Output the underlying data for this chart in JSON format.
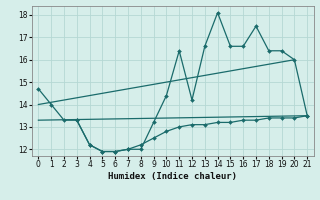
{
  "xlabel": "Humidex (Indice chaleur)",
  "xlim": [
    -0.5,
    21.5
  ],
  "ylim": [
    11.7,
    18.4
  ],
  "yticks": [
    12,
    13,
    14,
    15,
    16,
    17,
    18
  ],
  "xticks": [
    0,
    1,
    2,
    3,
    4,
    5,
    6,
    7,
    8,
    9,
    10,
    11,
    12,
    13,
    14,
    15,
    16,
    17,
    18,
    19,
    20,
    21
  ],
  "bg_color": "#d6eeea",
  "grid_color": "#b5d8d4",
  "line_color": "#1a6b6b",
  "upper_zigzag_x": [
    0,
    1,
    2,
    3,
    4,
    5,
    6,
    7,
    8,
    9,
    10,
    11,
    12,
    13,
    14,
    15,
    16,
    17,
    18,
    19,
    20,
    21
  ],
  "upper_zigzag_y": [
    14.7,
    14.0,
    13.3,
    13.3,
    12.2,
    11.9,
    11.9,
    12.0,
    12.0,
    13.2,
    14.4,
    16.4,
    14.2,
    16.6,
    18.1,
    16.6,
    16.6,
    17.5,
    16.4,
    16.4,
    16.0,
    13.5
  ],
  "upper_line_x": [
    0,
    20
  ],
  "upper_line_y": [
    14.0,
    16.0
  ],
  "lower_line_x": [
    0,
    21
  ],
  "lower_line_y": [
    13.3,
    13.5
  ],
  "lower_zigzag_x": [
    3,
    4,
    5,
    6,
    7,
    8,
    9,
    10,
    11,
    12,
    13,
    14,
    15,
    16,
    17,
    18,
    19,
    20,
    21
  ],
  "lower_zigzag_y": [
    13.3,
    12.2,
    11.9,
    11.9,
    12.0,
    12.2,
    12.5,
    12.8,
    13.0,
    13.1,
    13.1,
    13.2,
    13.2,
    13.3,
    13.3,
    13.4,
    13.4,
    13.4,
    13.5
  ]
}
